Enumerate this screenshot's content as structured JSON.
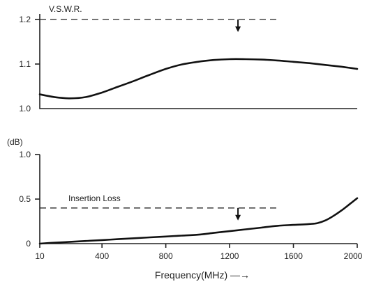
{
  "chart_data": [
    {
      "type": "line",
      "title": "V.S.W.R.",
      "ylim": [
        1.0,
        1.2
      ],
      "yticks": [
        "1.0",
        "1.1",
        "1.2"
      ],
      "xlim": [
        10,
        2000
      ],
      "series": [
        {
          "x": [
            10,
            100,
            200,
            300,
            400,
            500,
            600,
            700,
            800,
            900,
            1000,
            1100,
            1200,
            1300,
            1400,
            1500,
            1600,
            1700,
            1800,
            1900,
            2000
          ],
          "y": [
            1.032,
            1.026,
            1.023,
            1.026,
            1.036,
            1.049,
            1.062,
            1.076,
            1.089,
            1.099,
            1.105,
            1.109,
            1.111,
            1.111,
            1.11,
            1.108,
            1.105,
            1.102,
            1.098,
            1.094,
            1.089
          ]
        }
      ],
      "limit": {
        "y": 1.2,
        "x": [
          10,
          1500
        ]
      },
      "arrow_x": 1200
    },
    {
      "type": "line",
      "ylabel": "(dB)",
      "ylim": [
        0,
        1.0
      ],
      "yticks": [
        "0",
        "0.5",
        "1.0"
      ],
      "xlim": [
        10,
        2000
      ],
      "xticks": [
        10,
        400,
        800,
        1200,
        1600,
        2000
      ],
      "xtick_labels": [
        "10",
        "400",
        "800",
        "1200",
        "1600",
        "2000"
      ],
      "xlabel": "Frequency(MHz) —→",
      "series": [
        {
          "x": [
            10,
            100,
            200,
            300,
            400,
            500,
            600,
            700,
            800,
            900,
            1000,
            1100,
            1200,
            1300,
            1400,
            1500,
            1600,
            1700,
            1750,
            1800,
            1850,
            1900,
            1950,
            2000
          ],
          "y": [
            0.0,
            0.01,
            0.02,
            0.03,
            0.04,
            0.05,
            0.06,
            0.07,
            0.08,
            0.09,
            0.1,
            0.12,
            0.14,
            0.16,
            0.18,
            0.2,
            0.21,
            0.22,
            0.23,
            0.26,
            0.31,
            0.37,
            0.44,
            0.51
          ]
        }
      ],
      "limit": {
        "y": 0.4,
        "x": [
          10,
          1500
        ],
        "label": "Insertion Loss"
      },
      "arrow_x": 1200
    }
  ]
}
